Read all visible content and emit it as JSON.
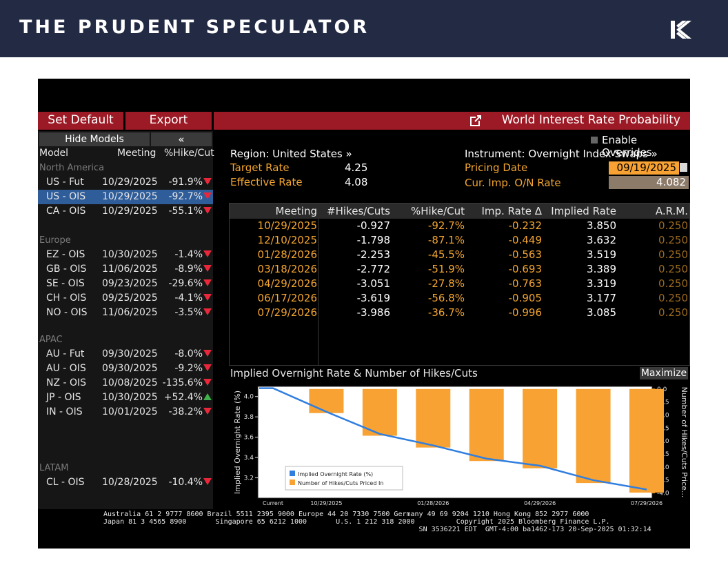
{
  "banner": {
    "brand": "THE PRUDENT SPECULATOR",
    "logo": "TPS monogram"
  },
  "toolbar": {
    "set_default": "Set Default",
    "export": "Export",
    "title": "World Interest Rate Probability",
    "launch_icon": "external-link-icon"
  },
  "left_pane": {
    "hide_models": "Hide Models",
    "collapse": "«",
    "headers": {
      "model": "Model",
      "meeting": "Meeting",
      "hike_cut": "%Hike/Cut"
    },
    "groups": [
      {
        "name": "North America",
        "rows": [
          {
            "model": "US - Fut",
            "meeting": "10/29/2025",
            "pct": "-91.9%",
            "dir": "down"
          },
          {
            "model": "US - OIS",
            "meeting": "10/29/2025",
            "pct": "-92.7%",
            "dir": "down",
            "selected": true
          },
          {
            "model": "CA - OIS",
            "meeting": "10/29/2025",
            "pct": "-55.1%",
            "dir": "down"
          }
        ]
      },
      {
        "name": "Europe",
        "rows": [
          {
            "model": "EZ - OIS",
            "meeting": "10/30/2025",
            "pct": "-1.4%",
            "dir": "down"
          },
          {
            "model": "GB - OIS",
            "meeting": "11/06/2025",
            "pct": "-8.9%",
            "dir": "down"
          },
          {
            "model": "SE - OIS",
            "meeting": "09/23/2025",
            "pct": "-29.6%",
            "dir": "down"
          },
          {
            "model": "CH - OIS",
            "meeting": "09/25/2025",
            "pct": "-4.1%",
            "dir": "down"
          },
          {
            "model": "NO - OIS",
            "meeting": "11/06/2025",
            "pct": "-3.5%",
            "dir": "down"
          }
        ]
      },
      {
        "name": "APAC",
        "rows": [
          {
            "model": "AU - Fut",
            "meeting": "09/30/2025",
            "pct": "-8.0%",
            "dir": "down"
          },
          {
            "model": "AU - OIS",
            "meeting": "09/30/2025",
            "pct": "-9.2%",
            "dir": "down"
          },
          {
            "model": "NZ - OIS",
            "meeting": "10/08/2025",
            "pct": "-135.6%",
            "dir": "down"
          },
          {
            "model": "JP - OIS",
            "meeting": "10/30/2025",
            "pct": "+52.4%",
            "dir": "up"
          },
          {
            "model": "IN - OIS",
            "meeting": "10/01/2025",
            "pct": "-38.2%",
            "dir": "down"
          }
        ]
      },
      {
        "name": "LATAM",
        "rows": [
          {
            "model": "CL - OIS",
            "meeting": "10/28/2025",
            "pct": "-10.4%",
            "dir": "down"
          }
        ]
      }
    ]
  },
  "info": {
    "enable_overrides": "Enable Overrides",
    "region": "Region: United States »",
    "instrument": "Instrument: Overnight Index Swaps »",
    "target_rate_label": "Target Rate",
    "target_rate": "4.25",
    "effective_rate_label": "Effective Rate",
    "effective_rate": "4.08",
    "pricing_date_label": "Pricing Date",
    "pricing_date": "09/19/2025",
    "cur_imp_label": "Cur. Imp. O/N Rate",
    "cur_imp": "4.082"
  },
  "table": {
    "headers": [
      "Meeting",
      "#Hikes/Cuts",
      "%Hike/Cut",
      "Imp. Rate Δ",
      "Implied Rate",
      "A.R.M."
    ],
    "rows": [
      [
        "10/29/2025",
        "-0.927",
        "-92.7%",
        "-0.232",
        "3.850",
        "0.250"
      ],
      [
        "12/10/2025",
        "-1.798",
        "-87.1%",
        "-0.449",
        "3.632",
        "0.250"
      ],
      [
        "01/28/2026",
        "-2.253",
        "-45.5%",
        "-0.563",
        "3.519",
        "0.250"
      ],
      [
        "03/18/2026",
        "-2.772",
        "-51.9%",
        "-0.693",
        "3.389",
        "0.250"
      ],
      [
        "04/29/2026",
        "-3.051",
        "-27.8%",
        "-0.763",
        "3.319",
        "0.250"
      ],
      [
        "06/17/2026",
        "-3.619",
        "-56.8%",
        "-0.905",
        "3.177",
        "0.250"
      ],
      [
        "07/29/2026",
        "-3.986",
        "-36.7%",
        "-0.996",
        "3.085",
        "0.250"
      ]
    ]
  },
  "chart_title": "Implied Overnight Rate & Number of Hikes/Cuts",
  "maximize": "Maximize",
  "chart_data": {
    "type": "bar",
    "categories": [
      "Current",
      "10/29/2025",
      "12/10/2025",
      "01/28/2026",
      "03/18/2026",
      "04/29/2026",
      "06/17/2026",
      "07/29/2026"
    ],
    "x_tick_labels": [
      "Current",
      "10/29/2025",
      "01/28/2026",
      "04/29/2026",
      "07/29/2026"
    ],
    "series": [
      {
        "name": "Implied Overnight Rate (%)",
        "type": "line",
        "axis": "left",
        "color": "#2f7ee0",
        "values": [
          4.082,
          3.85,
          3.632,
          3.519,
          3.389,
          3.319,
          3.177,
          3.085
        ]
      },
      {
        "name": "Number of Hikes/Cuts Priced In",
        "type": "bar",
        "axis": "right",
        "color": "#f7a232",
        "values": [
          null,
          -0.927,
          -1.798,
          -2.253,
          -2.772,
          -3.051,
          -3.619,
          -3.986
        ]
      }
    ],
    "ylabel": "Implied Overnight Rate (%)",
    "y2label": "Number of Hikes/Cuts Price...",
    "ylim": [
      3.0,
      4.1
    ],
    "y2lim": [
      -4.2,
      0.1
    ],
    "yticks": [
      "4.0",
      "3.8",
      "3.6",
      "3.4",
      "3.2"
    ],
    "y2ticks": [
      "0.0",
      "-0.5",
      "-1.0",
      "-1.5",
      "-2.0",
      "-2.5",
      "-3.0",
      "-3.5",
      "-4.0"
    ],
    "legend": "bottom-left"
  },
  "footer": {
    "line1": "Australia 61 2 9777 8600 Brazil 5511 2395 9000 Europe 44 20 7330 7500 Germany 49 69 9204 1210 Hong Kong 852 2977 6000",
    "line2": "Japan 81 3 4565 8900       Singapore 65 6212 1000       U.S. 1 212 318 2000          Copyright 2025 Bloomberg Finance L.P.",
    "line3": "                                                                            SN 3536221 EDT  GMT-4:00 ba1462-173 20-Sep-2025 01:32:14"
  }
}
